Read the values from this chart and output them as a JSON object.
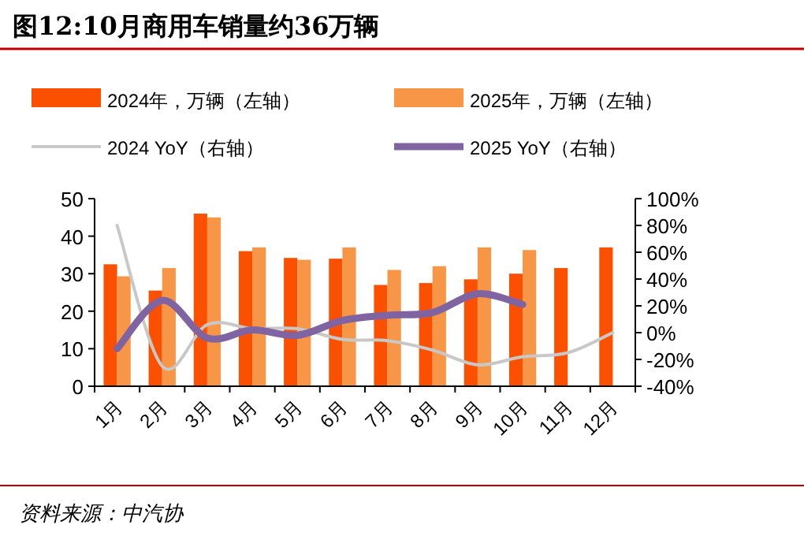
{
  "chart_data": {
    "type": "bar",
    "title": "图12:10月商用车销量约36万辆",
    "categories": [
      "1月",
      "2月",
      "3月",
      "4月",
      "5月",
      "6月",
      "7月",
      "8月",
      "9月",
      "10月",
      "11月",
      "12月"
    ],
    "series": [
      {
        "name": "2024年，万辆（左轴）",
        "color": "#fa5000",
        "values": [
          32.5,
          25.5,
          46,
          36,
          34.2,
          34,
          27,
          27.5,
          28.5,
          30,
          31.5,
          37
        ]
      },
      {
        "name": "2025年，万辆（左轴）",
        "color": "#f79646",
        "values": [
          29.3,
          31.5,
          45,
          37,
          33.7,
          37,
          31,
          32,
          37,
          36.3,
          null,
          null
        ]
      },
      {
        "name": "2024 YoY（右轴）",
        "type": "line",
        "axis": "y2",
        "color": "#c8c8c8",
        "values": [
          80,
          -25,
          6,
          3,
          3,
          -5,
          -6,
          -13,
          -24,
          -18,
          -15,
          0
        ]
      },
      {
        "name": "2025 YoY（右轴）",
        "type": "line",
        "axis": "y2",
        "color": "#8064a2",
        "values": [
          -12,
          24,
          -4,
          2,
          -2,
          9,
          13,
          15,
          29,
          21,
          null,
          null
        ]
      }
    ],
    "ylim": [
      0,
      50
    ],
    "yticks": [
      0,
      10,
      20,
      30,
      40,
      50
    ],
    "y2lim": [
      -40,
      100
    ],
    "y2ticks": [
      {
        "value": -40,
        "label": "-40%"
      },
      {
        "value": -20,
        "label": "-20%"
      },
      {
        "value": 0,
        "label": "0%"
      },
      {
        "value": 20,
        "label": "20%"
      },
      {
        "value": 40,
        "label": "40%"
      },
      {
        "value": 60,
        "label": "60%"
      },
      {
        "value": 80,
        "label": "80%"
      },
      {
        "value": 100,
        "label": "100%"
      }
    ],
    "grid": false,
    "legend": "top",
    "marker": "none",
    "line_style": "solid",
    "annotations": [
      "资料来源：中汽协"
    ]
  }
}
